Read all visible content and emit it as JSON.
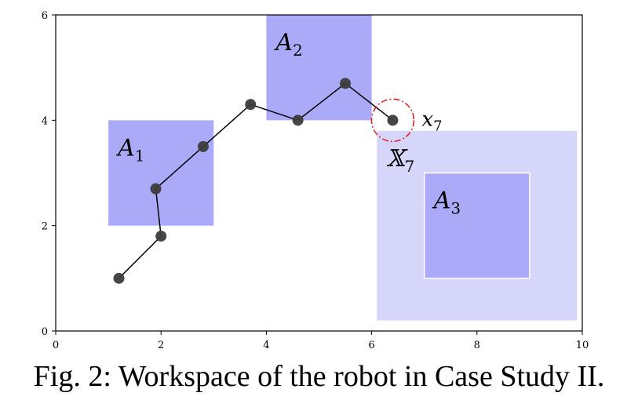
{
  "chart_data": {
    "type": "line",
    "title": "",
    "xlabel": "",
    "ylabel": "",
    "xlim": [
      0,
      10
    ],
    "ylim": [
      0,
      6
    ],
    "x_ticks": [
      0,
      2,
      4,
      6,
      8,
      10
    ],
    "y_ticks": [
      0,
      2,
      4,
      6
    ],
    "grid": false,
    "trajectory": [
      {
        "x": 1.2,
        "y": 1.0
      },
      {
        "x": 2.0,
        "y": 1.8
      },
      {
        "x": 1.9,
        "y": 2.7
      },
      {
        "x": 2.8,
        "y": 3.5
      },
      {
        "x": 3.7,
        "y": 4.3
      },
      {
        "x": 4.6,
        "y": 4.0
      },
      {
        "x": 5.5,
        "y": 4.7
      },
      {
        "x": 6.4,
        "y": 4.0
      }
    ],
    "regions": [
      {
        "name": "A",
        "sub": "1",
        "x0": 1.0,
        "x1": 3.0,
        "y0": 2.0,
        "y1": 4.0,
        "color": "#aaaaf8"
      },
      {
        "name": "A",
        "sub": "2",
        "x0": 4.0,
        "x1": 6.0,
        "y0": 4.0,
        "y1": 6.0,
        "color": "#aaaaf8"
      },
      {
        "name": "𝕏",
        "sub": "7",
        "x0": 6.1,
        "x1": 9.9,
        "y0": 0.2,
        "y1": 3.8,
        "color": "#d6d6fb"
      },
      {
        "name": "A",
        "sub": "3",
        "x0": 7.0,
        "x1": 9.0,
        "y0": 1.0,
        "y1": 3.0,
        "color": "#aaaaf8"
      }
    ],
    "highlight": {
      "name": "x",
      "sub": "7",
      "x": 6.4,
      "y": 4.0,
      "color": "#e8202a"
    }
  },
  "caption": "Fig. 2: Workspace of the robot in Case Study II."
}
